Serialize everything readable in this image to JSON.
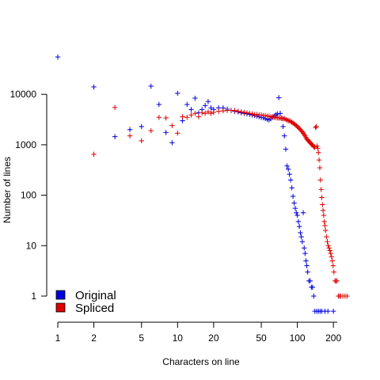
{
  "chart_data": {
    "type": "scatter",
    "title": "",
    "xlabel": "Characters on line",
    "ylabel": "Number of lines",
    "xscale": "log",
    "yscale": "log",
    "xlim": [
      1,
      270
    ],
    "ylim": [
      0.5,
      60000
    ],
    "grid": false,
    "legend_position": "bottom-left",
    "xticks": [
      1,
      2,
      5,
      10,
      20,
      50,
      100,
      200
    ],
    "xtick_labels": [
      "1",
      "2",
      "5",
      "10",
      "20",
      "50",
      "100",
      "200"
    ],
    "yticks": [
      1,
      10,
      100,
      1000,
      10000
    ],
    "ytick_labels": [
      "1",
      "10",
      "100",
      "1000",
      "10000"
    ],
    "series": [
      {
        "name": "Original",
        "color": "#0000dd",
        "marker": "plus",
        "points": [
          [
            1,
            55000
          ],
          [
            2,
            14000
          ],
          [
            3,
            1450
          ],
          [
            4,
            2000
          ],
          [
            5,
            2300
          ],
          [
            6,
            14500
          ],
          [
            7,
            6300
          ],
          [
            8,
            1750
          ],
          [
            9,
            1100
          ],
          [
            10,
            10500
          ],
          [
            11,
            3000
          ],
          [
            12,
            6300
          ],
          [
            13,
            5000
          ],
          [
            14,
            8400
          ],
          [
            15,
            4300
          ],
          [
            16,
            5000
          ],
          [
            17,
            6000
          ],
          [
            18,
            7200
          ],
          [
            19,
            5400
          ],
          [
            20,
            5000
          ],
          [
            22,
            5400
          ],
          [
            24,
            5400
          ],
          [
            26,
            5100
          ],
          [
            28,
            4800
          ],
          [
            30,
            4600
          ],
          [
            32,
            4500
          ],
          [
            34,
            4300
          ],
          [
            36,
            4200
          ],
          [
            38,
            4100
          ],
          [
            40,
            4000
          ],
          [
            42,
            3900
          ],
          [
            44,
            3800
          ],
          [
            46,
            3700
          ],
          [
            48,
            3600
          ],
          [
            50,
            3500
          ],
          [
            52,
            3450
          ],
          [
            54,
            3300
          ],
          [
            56,
            3200
          ],
          [
            58,
            3100
          ],
          [
            60,
            3300
          ],
          [
            62,
            3500
          ],
          [
            64,
            3700
          ],
          [
            66,
            3900
          ],
          [
            68,
            4100
          ],
          [
            70,
            8600
          ],
          [
            72,
            4200
          ],
          [
            74,
            3400
          ],
          [
            76,
            2300
          ],
          [
            78,
            1500
          ],
          [
            80,
            820
          ],
          [
            82,
            380
          ],
          [
            84,
            330
          ],
          [
            86,
            260
          ],
          [
            88,
            200
          ],
          [
            90,
            140
          ],
          [
            92,
            95
          ],
          [
            94,
            70
          ],
          [
            96,
            55
          ],
          [
            98,
            45
          ],
          [
            100,
            40
          ],
          [
            102,
            30
          ],
          [
            104,
            24
          ],
          [
            106,
            18
          ],
          [
            108,
            15
          ],
          [
            110,
            12
          ],
          [
            112,
            45
          ],
          [
            114,
            9
          ],
          [
            116,
            7
          ],
          [
            118,
            5
          ],
          [
            120,
            4
          ],
          [
            122,
            3
          ],
          [
            125,
            2
          ],
          [
            128,
            2
          ],
          [
            131,
            1.5
          ],
          [
            134,
            1.5
          ],
          [
            137,
            1
          ],
          [
            140,
            0.5
          ],
          [
            145,
            0.5
          ],
          [
            150,
            0.5
          ],
          [
            155,
            0.5
          ],
          [
            160,
            0.5
          ],
          [
            170,
            0.5
          ],
          [
            180,
            0.5
          ],
          [
            200,
            0.5
          ]
        ]
      },
      {
        "name": "Spliced",
        "color": "#dd0000",
        "marker": "plus",
        "points": [
          [
            2,
            650
          ],
          [
            3,
            5500
          ],
          [
            4,
            1500
          ],
          [
            5,
            1200
          ],
          [
            6,
            1900
          ],
          [
            7,
            3500
          ],
          [
            8,
            3400
          ],
          [
            9,
            2400
          ],
          [
            10,
            1700
          ],
          [
            11,
            3600
          ],
          [
            12,
            3500
          ],
          [
            13,
            3900
          ],
          [
            14,
            4200
          ],
          [
            15,
            3600
          ],
          [
            16,
            4300
          ],
          [
            17,
            4200
          ],
          [
            18,
            4500
          ],
          [
            19,
            4200
          ],
          [
            20,
            4400
          ],
          [
            22,
            4600
          ],
          [
            24,
            4700
          ],
          [
            26,
            4800
          ],
          [
            28,
            4800
          ],
          [
            30,
            4800
          ],
          [
            32,
            4600
          ],
          [
            34,
            4500
          ],
          [
            36,
            4400
          ],
          [
            38,
            4300
          ],
          [
            40,
            4200
          ],
          [
            42,
            4100
          ],
          [
            44,
            4000
          ],
          [
            46,
            4000
          ],
          [
            48,
            3900
          ],
          [
            50,
            3900
          ],
          [
            52,
            3800
          ],
          [
            54,
            3800
          ],
          [
            56,
            3700
          ],
          [
            58,
            3700
          ],
          [
            60,
            3600
          ],
          [
            62,
            3600
          ],
          [
            64,
            3500
          ],
          [
            66,
            3500
          ],
          [
            68,
            3400
          ],
          [
            70,
            3400
          ],
          [
            72,
            3400
          ],
          [
            74,
            3300
          ],
          [
            76,
            3300
          ],
          [
            78,
            3300
          ],
          [
            80,
            3200
          ],
          [
            82,
            3100
          ],
          [
            84,
            3000
          ],
          [
            86,
            3000
          ],
          [
            88,
            2900
          ],
          [
            90,
            2800
          ],
          [
            92,
            2700
          ],
          [
            94,
            2600
          ],
          [
            96,
            2500
          ],
          [
            98,
            2400
          ],
          [
            100,
            2300
          ],
          [
            102,
            2200
          ],
          [
            104,
            2100
          ],
          [
            106,
            2000
          ],
          [
            108,
            1900
          ],
          [
            110,
            1800
          ],
          [
            112,
            1700
          ],
          [
            114,
            1600
          ],
          [
            116,
            1500
          ],
          [
            118,
            1400
          ],
          [
            120,
            1300
          ],
          [
            122,
            1250
          ],
          [
            124,
            1200
          ],
          [
            126,
            1150
          ],
          [
            128,
            1100
          ],
          [
            130,
            1050
          ],
          [
            132,
            1000
          ],
          [
            134,
            1000
          ],
          [
            136,
            950
          ],
          [
            138,
            900
          ],
          [
            140,
            900
          ],
          [
            142,
            2200
          ],
          [
            144,
            2300
          ],
          [
            146,
            950
          ],
          [
            148,
            850
          ],
          [
            150,
            700
          ],
          [
            152,
            500
          ],
          [
            154,
            350
          ],
          [
            156,
            200
          ],
          [
            158,
            130
          ],
          [
            160,
            90
          ],
          [
            162,
            65
          ],
          [
            164,
            50
          ],
          [
            166,
            40
          ],
          [
            168,
            30
          ],
          [
            170,
            25
          ],
          [
            172,
            20
          ],
          [
            175,
            15
          ],
          [
            178,
            12
          ],
          [
            181,
            10
          ],
          [
            184,
            9
          ],
          [
            187,
            8
          ],
          [
            190,
            7
          ],
          [
            193,
            6
          ],
          [
            196,
            5
          ],
          [
            199,
            4
          ],
          [
            202,
            3
          ],
          [
            206,
            2
          ],
          [
            210,
            2
          ],
          [
            215,
            2
          ],
          [
            220,
            1
          ],
          [
            225,
            1
          ],
          [
            230,
            1
          ],
          [
            240,
            1
          ],
          [
            250,
            1
          ],
          [
            260,
            1
          ]
        ]
      }
    ]
  }
}
